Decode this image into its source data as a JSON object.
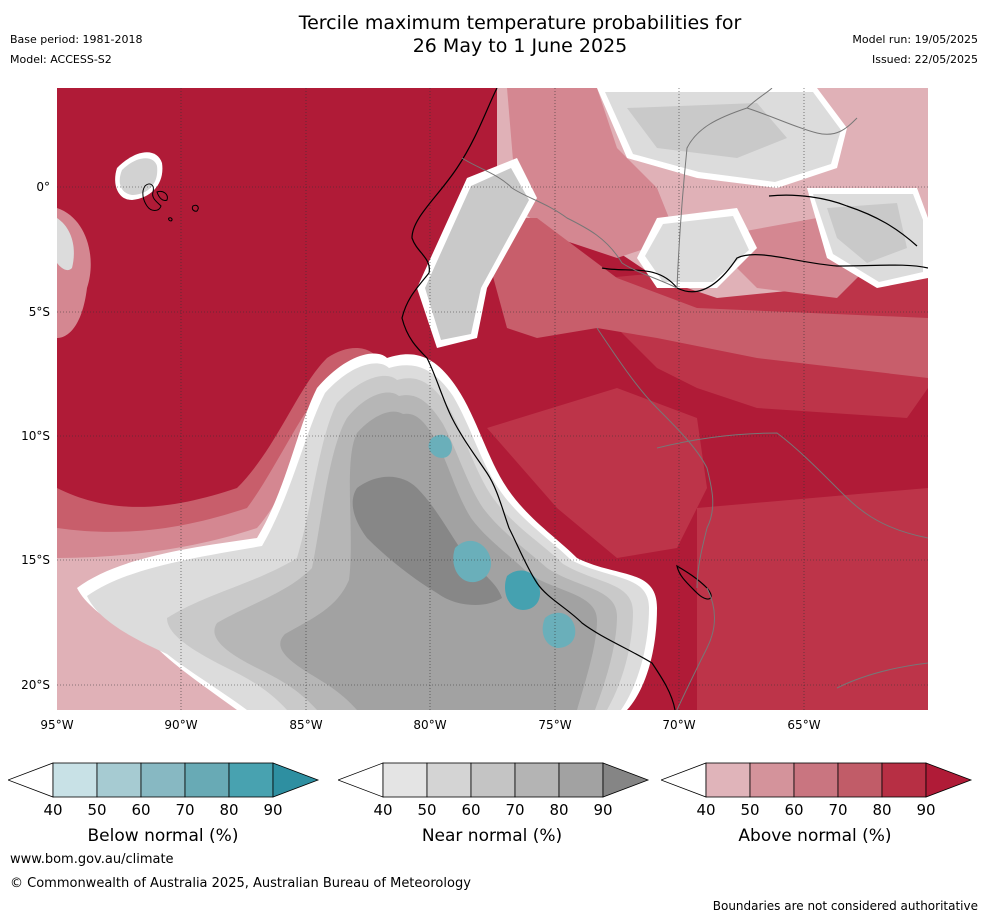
{
  "header": {
    "title_line1": "Tercile maximum temperature probabilities for",
    "title_line2": "26 May to 1 June 2025",
    "base_period": "Base period: 1981-2018",
    "model": "Model: ACCESS-S2",
    "model_run": "Model run: 19/05/2025",
    "issued": "Issued: 22/05/2025"
  },
  "map": {
    "lat_labels": [
      "0°",
      "5°S",
      "10°S",
      "15°S",
      "20°S"
    ],
    "lon_labels": [
      "95°W",
      "90°W",
      "85°W",
      "80°W",
      "75°W",
      "70°W",
      "65°W"
    ],
    "colors": {
      "above_90": "#b01b37",
      "above_80": "#bd3449",
      "above_70": "#c85e6b",
      "above_60": "#d48791",
      "above_50": "#e0b1b7",
      "near_90": "#878787",
      "near_80": "#a2a2a2",
      "near_70": "#b6b6b6",
      "near_60": "#c9c9c9",
      "near_50": "#dcdcdc",
      "below_80": "#45a1b0",
      "below_70": "#6aafba"
    }
  },
  "colorbars": [
    {
      "ticks": [
        "40",
        "50",
        "60",
        "70",
        "80",
        "90"
      ],
      "label": "Below normal (%)",
      "colors": [
        "#ffffff",
        "#c8e1e6",
        "#a6cbd2",
        "#87b8c2",
        "#68aab5",
        "#48a2b0",
        "#2e8fa1"
      ]
    },
    {
      "ticks": [
        "40",
        "50",
        "60",
        "70",
        "80",
        "90"
      ],
      "label": "Near normal (%)",
      "colors": [
        "#ffffff",
        "#e4e4e4",
        "#d4d4d4",
        "#c4c4c4",
        "#b4b4b4",
        "#a2a2a2",
        "#858585"
      ]
    },
    {
      "ticks": [
        "40",
        "50",
        "60",
        "70",
        "80",
        "90"
      ],
      "label": "Above normal (%)",
      "colors": [
        "#ffffff",
        "#e0b4ba",
        "#d4939b",
        "#c97580",
        "#c15c68",
        "#b72f44",
        "#b01b37"
      ]
    }
  ],
  "footer": {
    "website": "www.bom.gov.au/climate",
    "copyright": "© Commonwealth of Australia 2025, Australian Bureau of Meteorology",
    "disclaimer": "Boundaries are not considered authoritative"
  }
}
